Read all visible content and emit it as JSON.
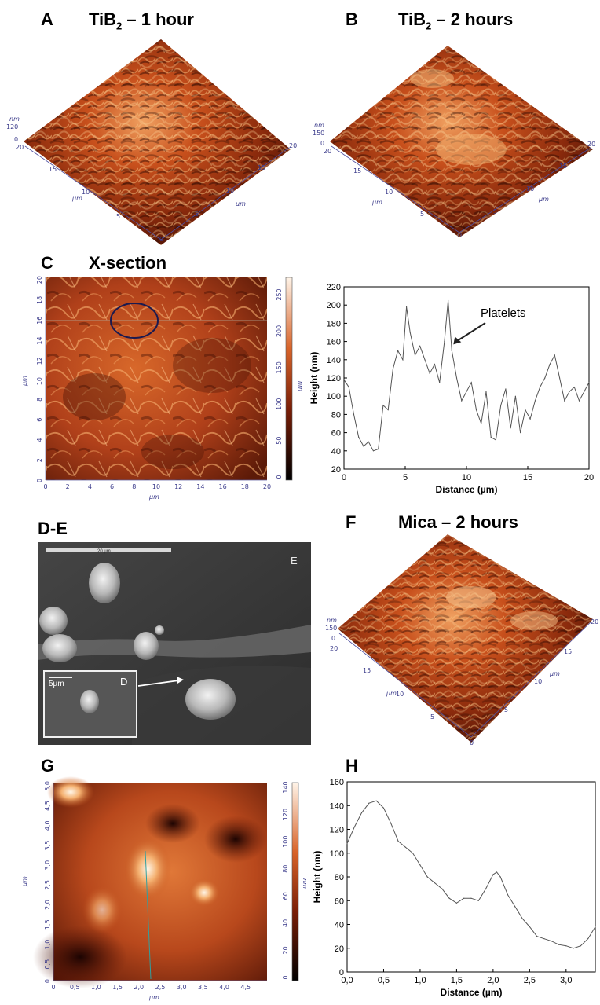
{
  "panels": {
    "A": {
      "letter": "A",
      "title_main": "TiB",
      "title_sub": "2",
      "title_rest": " – 1 hour",
      "z_unit": "nm",
      "z_max": "120",
      "z_zero": "0",
      "xy_unit": "µm",
      "ticks": [
        "20",
        "15",
        "10",
        "5",
        "0",
        "5",
        "10",
        "15",
        "20"
      ]
    },
    "B": {
      "letter": "B",
      "title_main": "TiB",
      "title_sub": "2",
      "title_rest": " – 2 hours",
      "z_unit": "nm",
      "z_max": "150",
      "z_zero": "0",
      "xy_unit": "µm",
      "ticks": [
        "20",
        "15",
        "10",
        "5",
        "0",
        "5",
        "10",
        "15",
        "20"
      ]
    },
    "C": {
      "letter": "C",
      "title": "X-section",
      "axis_unit": "µm",
      "colorbar_unit": "nm",
      "colorbar_ticks": [
        "250",
        "200",
        "150",
        "100",
        "50",
        "0"
      ],
      "x_ticks": [
        "0",
        "2",
        "4",
        "6",
        "8",
        "10",
        "12",
        "14",
        "16",
        "18",
        "20"
      ],
      "y_ticks": [
        "20",
        "18",
        "16",
        "14",
        "12",
        "10",
        "8",
        "6",
        "4",
        "2",
        "0"
      ]
    },
    "DE": {
      "letter": "D-E",
      "scale_main": "20 µm",
      "scale_inset": "5µm",
      "label_e": "E",
      "label_d": "D"
    },
    "F": {
      "letter": "F",
      "title": "Mica – 2 hours",
      "z_unit": "nm",
      "z_max": "150",
      "z_zero": "0",
      "xy_unit": "µm",
      "ticks": [
        "20",
        "15",
        "10",
        "5",
        "0",
        "5",
        "10",
        "15",
        "20"
      ]
    },
    "G": {
      "letter": "G",
      "axis_unit": "µm",
      "colorbar_unit": "nm",
      "colorbar_ticks": [
        "140",
        "120",
        "100",
        "80",
        "60",
        "40",
        "20",
        "0"
      ],
      "x_ticks": [
        "0",
        "0,5",
        "1,0",
        "1,5",
        "2,0",
        "2,5",
        "3,0",
        "3,5",
        "4,0",
        "4,5"
      ],
      "y_ticks": [
        "5,0",
        "4,5",
        "4,0",
        "3,5",
        "3,0",
        "2,5",
        "2,0",
        "1,5",
        "1,0",
        "0,5",
        "0"
      ]
    },
    "H": {
      "letter": "H"
    }
  },
  "chart_data": [
    {
      "type": "line",
      "panel": "C",
      "xlabel": "Distance (µm)",
      "ylabel": "Height (nm)",
      "xlim": [
        0,
        20
      ],
      "ylim": [
        20,
        220
      ],
      "x_ticks": [
        "0",
        "5",
        "10",
        "15",
        "20"
      ],
      "y_ticks": [
        "20",
        "40",
        "60",
        "80",
        "100",
        "120",
        "140",
        "160",
        "180",
        "200",
        "220"
      ],
      "annotation": "Platelets",
      "series": [
        {
          "x": [
            0,
            0.4,
            0.8,
            1.2,
            1.6,
            2.0,
            2.4,
            2.8,
            3.2,
            3.6,
            4.0,
            4.4,
            4.8,
            5.1,
            5.4,
            5.8,
            6.2,
            6.6,
            7.0,
            7.4,
            7.8,
            8.2,
            8.5,
            8.8,
            9.2,
            9.6,
            10.0,
            10.4,
            10.8,
            11.2,
            11.6,
            12.0,
            12.4,
            12.8,
            13.2,
            13.6,
            14.0,
            14.4,
            14.8,
            15.2,
            15.6,
            16.0,
            16.4,
            16.8,
            17.2,
            17.6,
            18.0,
            18.4,
            18.8,
            19.2,
            19.6,
            20.0
          ],
          "y": [
            118,
            110,
            80,
            55,
            45,
            50,
            40,
            42,
            90,
            85,
            130,
            150,
            140,
            198,
            170,
            145,
            155,
            140,
            125,
            135,
            115,
            160,
            205,
            150,
            120,
            95,
            105,
            115,
            85,
            70,
            105,
            55,
            52,
            90,
            108,
            65,
            100,
            60,
            85,
            75,
            95,
            110,
            120,
            135,
            145,
            120,
            95,
            105,
            110,
            95,
            105,
            115
          ]
        }
      ]
    },
    {
      "type": "line",
      "panel": "H",
      "xlabel": "Distance (µm)",
      "ylabel": "Height (nm)",
      "xlim": [
        0,
        3.4
      ],
      "ylim": [
        0,
        160
      ],
      "x_ticks": [
        "0,0",
        "0,5",
        "1,0",
        "1,5",
        "2,0",
        "2,5",
        "3,0"
      ],
      "y_ticks": [
        "0",
        "20",
        "40",
        "60",
        "80",
        "100",
        "120",
        "140",
        "160"
      ],
      "series": [
        {
          "x": [
            0.0,
            0.1,
            0.2,
            0.3,
            0.4,
            0.5,
            0.6,
            0.7,
            0.8,
            0.9,
            1.0,
            1.1,
            1.2,
            1.3,
            1.4,
            1.5,
            1.6,
            1.7,
            1.8,
            1.9,
            2.0,
            2.05,
            2.1,
            2.2,
            2.3,
            2.4,
            2.5,
            2.6,
            2.7,
            2.8,
            2.9,
            3.0,
            3.1,
            3.2,
            3.3,
            3.4
          ],
          "y": [
            108,
            122,
            134,
            142,
            144,
            138,
            125,
            110,
            105,
            100,
            90,
            80,
            75,
            70,
            62,
            58,
            62,
            62,
            60,
            70,
            82,
            84,
            80,
            65,
            55,
            45,
            38,
            30,
            28,
            26,
            23,
            22,
            20,
            22,
            28,
            38
          ]
        }
      ]
    }
  ]
}
